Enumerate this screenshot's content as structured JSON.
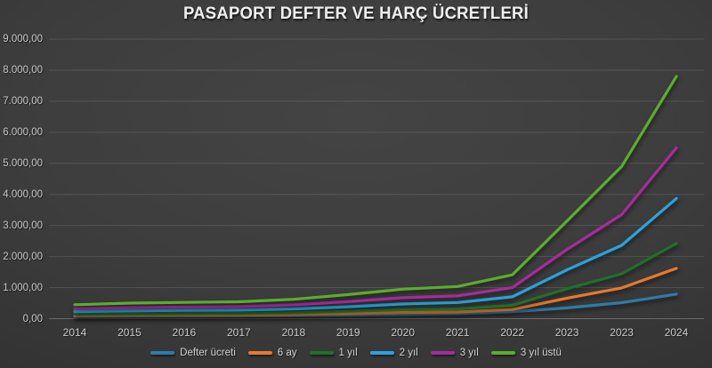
{
  "chart": {
    "title": "PASAPORT DEFTER VE HARÇ ÜCRETLERİ"
  },
  "chart_data": {
    "type": "line",
    "title": "PASAPORT DEFTER VE HARÇ ÜCRETLERİ",
    "categories": [
      "2014",
      "2015",
      "2016",
      "2017",
      "2018",
      "2019",
      "2020",
      "2021",
      "2022",
      "2023",
      "2023",
      "2024"
    ],
    "series": [
      {
        "name": "Defter ücreti",
        "color": "#2e7ba6",
        "values": [
          70,
          75,
          80,
          85,
          95,
          110,
          135,
          160,
          225,
          345,
          515,
          790
        ]
      },
      {
        "name": "6 ay",
        "color": "#e8782e",
        "values": [
          95,
          105,
          110,
          115,
          130,
          160,
          200,
          215,
          295,
          660,
          990,
          1620
        ]
      },
      {
        "name": "1 yıl",
        "color": "#20702b",
        "values": [
          140,
          155,
          160,
          170,
          190,
          235,
          290,
          315,
          430,
          965,
          1445,
          2420
        ]
      },
      {
        "name": "2 yıl",
        "color": "#2aa3dc",
        "values": [
          225,
          250,
          265,
          275,
          315,
          385,
          475,
          520,
          705,
          1570,
          2360,
          3870
        ]
      },
      {
        "name": "3 yıl",
        "color": "#a62c9d",
        "values": [
          320,
          355,
          375,
          390,
          445,
          550,
          675,
          735,
          1000,
          2230,
          3350,
          5500
        ]
      },
      {
        "name": "3 yıl üstü",
        "color": "#5aae2b",
        "values": [
          450,
          500,
          525,
          545,
          625,
          775,
          950,
          1035,
          1410,
          3145,
          4900,
          7800
        ]
      }
    ],
    "y_axis": {
      "min": 0,
      "max": 9000,
      "step": 1000,
      "tick_labels": [
        "0,00",
        "1.000,00",
        "2.000,00",
        "3.000,00",
        "4.000,00",
        "5.000,00",
        "6.000,00",
        "7.000,00",
        "8.000,00",
        "9.000,00"
      ]
    },
    "x_axis": {
      "label": ""
    },
    "grid": true,
    "legend_position": "bottom",
    "background_color": "#3a3a3a",
    "text_color": "#c9c9c9"
  }
}
